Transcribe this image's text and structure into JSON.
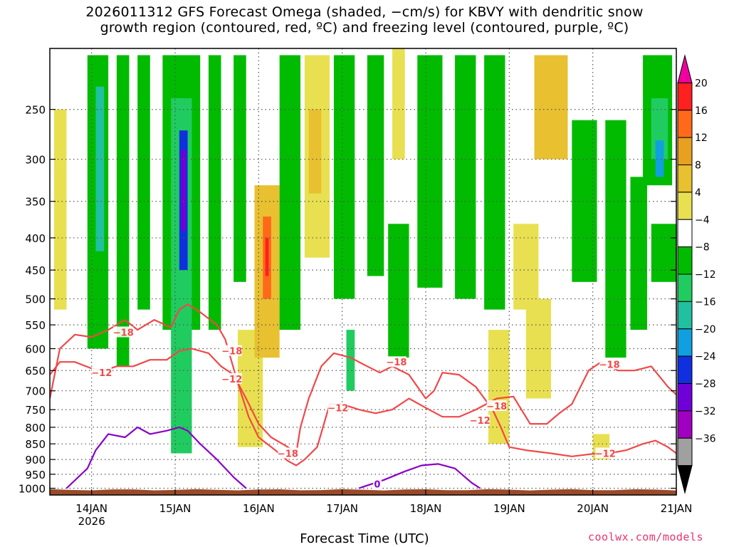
{
  "chart_data": {
    "type": "heatmap",
    "title_line1": "2026011312 GFS Forecast Omega (shaded, −cm/s) for KBVY with dendritic snow",
    "title_line2": "growth region (contoured, red, ºC) and freezing level (contoured, purple, ºC)",
    "xlabel": "Forecast Time (UTC)",
    "credit": "coolwx.com/models",
    "x_ticks": [
      {
        "label": "14JAN",
        "sub": "2026",
        "day": 14
      },
      {
        "label": "15JAN",
        "sub": "",
        "day": 15
      },
      {
        "label": "16JAN",
        "sub": "",
        "day": 16
      },
      {
        "label": "17JAN",
        "sub": "",
        "day": 17
      },
      {
        "label": "18JAN",
        "sub": "",
        "day": 18
      },
      {
        "label": "19JAN",
        "sub": "",
        "day": 19
      },
      {
        "label": "20JAN",
        "sub": "",
        "day": 20
      },
      {
        "label": "21JAN",
        "sub": "",
        "day": 21
      }
    ],
    "xlim": [
      13.5,
      21.0
    ],
    "y_ticks": [
      250,
      300,
      350,
      400,
      450,
      500,
      550,
      600,
      650,
      700,
      750,
      800,
      850,
      900,
      950,
      1000
    ],
    "ylim": [
      1025,
      200
    ],
    "yscale": "log",
    "grid": true,
    "colorbar": {
      "labels": [
        "20",
        "16",
        "12",
        "8",
        "4",
        "−4",
        "−8",
        "−12",
        "−16",
        "−20",
        "−24",
        "−28",
        "−32",
        "−36"
      ],
      "colors": [
        "#f000a0",
        "#ff2020",
        "#ff6a1a",
        "#e8a020",
        "#e8c030",
        "#e8e050",
        "#ffffff",
        "#00bb00",
        "#20cc60",
        "#20c0a0",
        "#10a0e0",
        "#1030e0",
        "#7000d8",
        "#a000c0",
        "#a0a0a0",
        "#000000"
      ]
    },
    "omega_regions": [
      {
        "x0": 13.95,
        "x1": 14.2,
        "p0": 205,
        "p1": 600,
        "c": "#00bb00"
      },
      {
        "x0": 14.05,
        "x1": 14.15,
        "p0": 230,
        "p1": 420,
        "c": "#20c0a0"
      },
      {
        "x0": 14.3,
        "x1": 14.45,
        "p0": 205,
        "p1": 640,
        "c": "#00bb00"
      },
      {
        "x0": 14.55,
        "x1": 14.7,
        "p0": 205,
        "p1": 520,
        "c": "#00bb00"
      },
      {
        "x0": 14.85,
        "x1": 15.3,
        "p0": 205,
        "p1": 560,
        "c": "#00bb00"
      },
      {
        "x0": 14.95,
        "x1": 15.2,
        "p0": 240,
        "p1": 880,
        "c": "#20cc60"
      },
      {
        "x0": 15.05,
        "x1": 15.15,
        "p0": 270,
        "p1": 450,
        "c": "#1030e0"
      },
      {
        "x0": 15.07,
        "x1": 15.13,
        "p0": 290,
        "p1": 390,
        "c": "#7000d8"
      },
      {
        "x0": 15.4,
        "x1": 15.55,
        "p0": 205,
        "p1": 560,
        "c": "#00bb00"
      },
      {
        "x0": 15.7,
        "x1": 15.85,
        "p0": 205,
        "p1": 470,
        "c": "#00bb00"
      },
      {
        "x0": 13.55,
        "x1": 13.7,
        "p0": 250,
        "p1": 520,
        "c": "#e8e050"
      },
      {
        "x0": 15.75,
        "x1": 16.05,
        "p0": 560,
        "p1": 860,
        "c": "#e8e050"
      },
      {
        "x0": 15.95,
        "x1": 16.25,
        "p0": 330,
        "p1": 620,
        "c": "#e8c030"
      },
      {
        "x0": 16.05,
        "x1": 16.15,
        "p0": 370,
        "p1": 500,
        "c": "#ff6a1a"
      },
      {
        "x0": 16.08,
        "x1": 16.12,
        "p0": 400,
        "p1": 460,
        "c": "#ff2020"
      },
      {
        "x0": 16.25,
        "x1": 16.5,
        "p0": 205,
        "p1": 560,
        "c": "#00bb00"
      },
      {
        "x0": 16.55,
        "x1": 16.85,
        "p0": 205,
        "p1": 430,
        "c": "#e8e050"
      },
      {
        "x0": 16.6,
        "x1": 16.75,
        "p0": 250,
        "p1": 340,
        "c": "#e8c030"
      },
      {
        "x0": 16.9,
        "x1": 17.15,
        "p0": 205,
        "p1": 500,
        "c": "#00bb00"
      },
      {
        "x0": 17.05,
        "x1": 17.15,
        "p0": 560,
        "p1": 700,
        "c": "#20cc60"
      },
      {
        "x0": 17.3,
        "x1": 17.5,
        "p0": 205,
        "p1": 460,
        "c": "#00bb00"
      },
      {
        "x0": 17.55,
        "x1": 17.8,
        "p0": 380,
        "p1": 620,
        "c": "#00bb00"
      },
      {
        "x0": 17.6,
        "x1": 17.75,
        "p0": 200,
        "p1": 300,
        "c": "#e8e050"
      },
      {
        "x0": 17.9,
        "x1": 18.2,
        "p0": 205,
        "p1": 480,
        "c": "#00bb00"
      },
      {
        "x0": 18.35,
        "x1": 18.6,
        "p0": 205,
        "p1": 500,
        "c": "#00bb00"
      },
      {
        "x0": 18.7,
        "x1": 18.95,
        "p0": 205,
        "p1": 520,
        "c": "#00bb00"
      },
      {
        "x0": 18.75,
        "x1": 19.0,
        "p0": 560,
        "p1": 850,
        "c": "#e8e050"
      },
      {
        "x0": 19.3,
        "x1": 19.7,
        "p0": 205,
        "p1": 300,
        "c": "#e8c030"
      },
      {
        "x0": 19.2,
        "x1": 19.5,
        "p0": 500,
        "p1": 720,
        "c": "#e8e050"
      },
      {
        "x0": 19.75,
        "x1": 20.05,
        "p0": 260,
        "p1": 470,
        "c": "#00bb00"
      },
      {
        "x0": 20.15,
        "x1": 20.4,
        "p0": 260,
        "p1": 620,
        "c": "#00bb00"
      },
      {
        "x0": 20.45,
        "x1": 20.65,
        "p0": 320,
        "p1": 560,
        "c": "#00bb00"
      },
      {
        "x0": 20.6,
        "x1": 20.95,
        "p0": 205,
        "p1": 330,
        "c": "#00bb00"
      },
      {
        "x0": 20.7,
        "x1": 20.9,
        "p0": 240,
        "p1": 300,
        "c": "#20cc60"
      },
      {
        "x0": 20.75,
        "x1": 20.85,
        "p0": 280,
        "p1": 320,
        "c": "#10a0e0"
      },
      {
        "x0": 20.7,
        "x1": 21.0,
        "p0": 380,
        "p1": 470,
        "c": "#00bb00"
      },
      {
        "x0": 19.05,
        "x1": 19.35,
        "p0": 380,
        "p1": 520,
        "c": "#e8e050"
      },
      {
        "x0": 20.0,
        "x1": 20.2,
        "p0": 820,
        "p1": 900,
        "c": "#e8e050"
      }
    ],
    "series": [
      {
        "name": "",
        "label": "−18",
        "color": "#f04848",
        "points": [
          [
            13.5,
            720
          ],
          [
            13.62,
            600
          ],
          [
            13.8,
            570
          ],
          [
            14.0,
            575
          ],
          [
            14.2,
            560
          ],
          [
            14.4,
            540
          ],
          [
            14.55,
            560
          ],
          [
            14.75,
            540
          ],
          [
            14.95,
            555
          ],
          [
            15.05,
            520
          ],
          [
            15.15,
            510
          ],
          [
            15.3,
            525
          ],
          [
            15.5,
            550
          ],
          [
            15.6,
            580
          ],
          [
            15.75,
            680
          ],
          [
            15.88,
            770
          ],
          [
            16.0,
            830
          ],
          [
            16.2,
            870
          ],
          [
            16.35,
            905
          ],
          [
            16.45,
            920
          ],
          [
            16.55,
            900
          ],
          [
            16.7,
            860
          ],
          [
            16.8,
            775
          ],
          [
            16.85,
            735
          ],
          [
            17.0,
            735
          ],
          [
            17.2,
            750
          ],
          [
            17.4,
            760
          ],
          [
            17.6,
            750
          ],
          [
            17.8,
            720
          ],
          [
            18.0,
            745
          ],
          [
            18.2,
            770
          ],
          [
            18.4,
            770
          ],
          [
            18.6,
            750
          ],
          [
            18.85,
            720
          ],
          [
            19.05,
            715
          ],
          [
            19.25,
            790
          ],
          [
            19.45,
            790
          ],
          [
            19.6,
            760
          ],
          [
            19.75,
            735
          ],
          [
            19.95,
            650
          ],
          [
            20.1,
            630
          ],
          [
            20.3,
            650
          ],
          [
            20.5,
            650
          ],
          [
            20.7,
            640
          ],
          [
            20.9,
            690
          ],
          [
            21.0,
            710
          ]
        ]
      },
      {
        "name": "",
        "label": "−12",
        "color": "#f04848",
        "points": [
          [
            13.5,
            660
          ],
          [
            13.62,
            630
          ],
          [
            13.8,
            630
          ],
          [
            14.0,
            645
          ],
          [
            14.15,
            650
          ],
          [
            14.3,
            640
          ],
          [
            14.5,
            640
          ],
          [
            14.7,
            625
          ],
          [
            14.9,
            625
          ],
          [
            15.05,
            605
          ],
          [
            15.2,
            600
          ],
          [
            15.4,
            610
          ],
          [
            15.55,
            640
          ],
          [
            15.7,
            660
          ],
          [
            15.85,
            720
          ],
          [
            16.0,
            790
          ],
          [
            16.15,
            830
          ],
          [
            16.35,
            860
          ],
          [
            16.45,
            880
          ],
          [
            16.5,
            800
          ],
          [
            16.6,
            720
          ],
          [
            16.75,
            640
          ],
          [
            16.9,
            610
          ],
          [
            17.1,
            620
          ],
          [
            17.3,
            640
          ],
          [
            17.45,
            655
          ],
          [
            17.6,
            640
          ],
          [
            17.8,
            660
          ],
          [
            18.0,
            720
          ],
          [
            18.1,
            700
          ],
          [
            18.2,
            655
          ],
          [
            18.4,
            660
          ],
          [
            18.6,
            690
          ],
          [
            18.8,
            750
          ],
          [
            18.9,
            800
          ],
          [
            19.0,
            860
          ],
          [
            19.2,
            870
          ],
          [
            19.5,
            880
          ],
          [
            19.75,
            890
          ],
          [
            19.9,
            885
          ],
          [
            20.05,
            880
          ],
          [
            20.2,
            880
          ],
          [
            20.4,
            870
          ],
          [
            20.5,
            860
          ],
          [
            20.6,
            850
          ],
          [
            20.75,
            840
          ],
          [
            20.9,
            860
          ],
          [
            21.0,
            880
          ]
        ]
      },
      {
        "name": "",
        "label": "0",
        "color": "#8a00c8",
        "points": [
          [
            13.7,
            1000
          ],
          [
            13.95,
            930
          ],
          [
            14.05,
            870
          ],
          [
            14.2,
            820
          ],
          [
            14.4,
            830
          ],
          [
            14.55,
            800
          ],
          [
            14.7,
            820
          ],
          [
            14.9,
            810
          ],
          [
            15.05,
            800
          ],
          [
            15.15,
            810
          ],
          [
            15.3,
            850
          ],
          [
            15.5,
            900
          ],
          [
            15.7,
            960
          ],
          [
            15.85,
            1000
          ]
        ]
      },
      {
        "name": "",
        "label": "0",
        "color": "#8a00c8",
        "points": [
          [
            17.2,
            1000
          ],
          [
            17.5,
            970
          ],
          [
            17.75,
            940
          ],
          [
            17.95,
            920
          ],
          [
            18.15,
            915
          ],
          [
            18.35,
            930
          ],
          [
            18.55,
            980
          ],
          [
            18.65,
            1000
          ]
        ]
      }
    ],
    "contour_labels": [
      {
        "text": "−18",
        "day": 14.38,
        "p": 565,
        "color": "#f04848"
      },
      {
        "text": "−12",
        "day": 14.12,
        "p": 655,
        "color": "#f04848"
      },
      {
        "text": "−18",
        "day": 15.68,
        "p": 605,
        "color": "#f04848"
      },
      {
        "text": "−12",
        "day": 15.68,
        "p": 670,
        "color": "#f04848"
      },
      {
        "text": "−18",
        "day": 16.35,
        "p": 880,
        "color": "#f04848"
      },
      {
        "text": "−12",
        "day": 16.95,
        "p": 745,
        "color": "#f04848"
      },
      {
        "text": "−18",
        "day": 17.65,
        "p": 630,
        "color": "#f04848"
      },
      {
        "text": "−18",
        "day": 18.85,
        "p": 740,
        "color": "#f04848"
      },
      {
        "text": "−12",
        "day": 18.65,
        "p": 780,
        "color": "#f04848"
      },
      {
        "text": "−18",
        "day": 20.2,
        "p": 635,
        "color": "#f04848"
      },
      {
        "text": "−12",
        "day": 20.15,
        "p": 880,
        "color": "#f04848"
      },
      {
        "text": "0",
        "day": 17.42,
        "p": 985,
        "color": "#8a00c8"
      }
    ],
    "terrain_color": "#9a4a28"
  }
}
